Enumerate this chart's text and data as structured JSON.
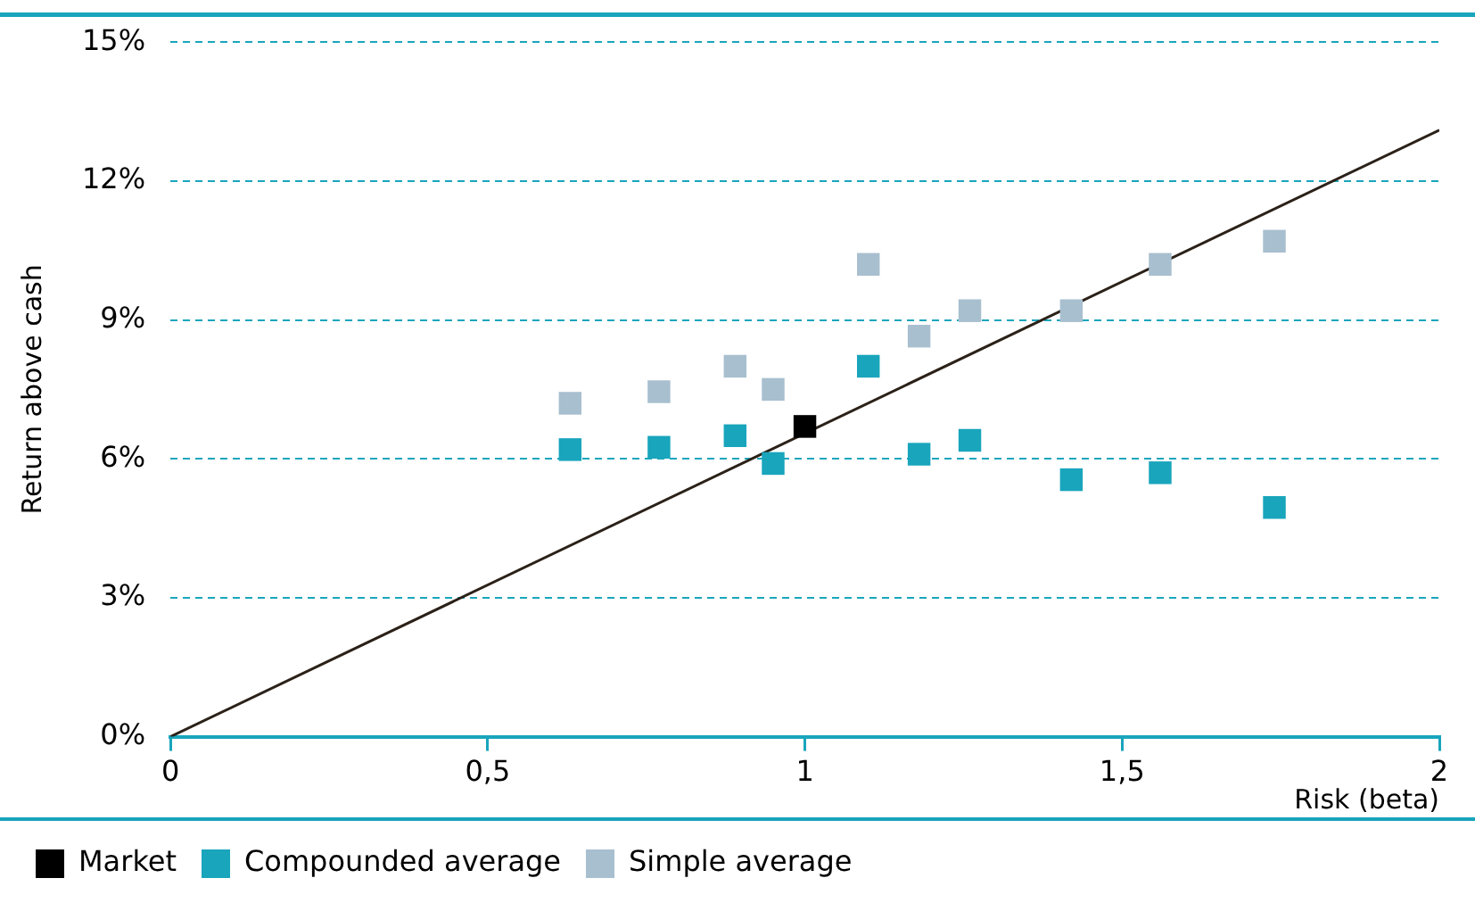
{
  "chart_data": {
    "type": "scatter",
    "xlabel": "Risk (beta)",
    "ylabel": "Return above cash",
    "marker": "square",
    "grid": "y",
    "legend": "bottom left",
    "xlim": [
      0,
      2
    ],
    "xticks": [
      0,
      {
        "value": 0.5,
        "label": "0,5"
      },
      1,
      {
        "value": 1.5,
        "label": "1,5"
      },
      2
    ],
    "ylim": [
      0,
      15
    ],
    "yticks": [
      {
        "value": 0,
        "label": "0%"
      },
      {
        "value": 3,
        "label": "3%"
      },
      {
        "value": 6,
        "label": "6%"
      },
      {
        "value": 9,
        "label": "9%"
      },
      {
        "value": 12,
        "label": "12%"
      },
      {
        "value": 15,
        "label": "15%"
      }
    ],
    "series": [
      {
        "type": "line",
        "marker": "none",
        "color": "#2b2118",
        "x": [
          0,
          2
        ],
        "values": [
          0,
          13.1
        ]
      },
      {
        "name": "Market",
        "color": "#000000",
        "x": [
          1.0
        ],
        "values": [
          6.7
        ]
      },
      {
        "name": "Compounded average",
        "color": "#19a5bc",
        "x": [
          0.63,
          0.77,
          0.89,
          0.95,
          1.1,
          1.18,
          1.26,
          1.42,
          1.56,
          1.74
        ],
        "values": [
          6.2,
          6.25,
          6.5,
          5.9,
          8.0,
          6.1,
          6.4,
          5.55,
          5.7,
          4.95
        ]
      },
      {
        "name": "Simple average",
        "color": "#a8bfcf",
        "x": [
          0.63,
          0.77,
          0.89,
          0.95,
          1.1,
          1.18,
          1.26,
          1.42,
          1.56,
          1.74
        ],
        "values": [
          7.2,
          7.45,
          8.0,
          7.5,
          10.2,
          8.65,
          9.2,
          9.2,
          10.2,
          10.7
        ]
      }
    ]
  }
}
